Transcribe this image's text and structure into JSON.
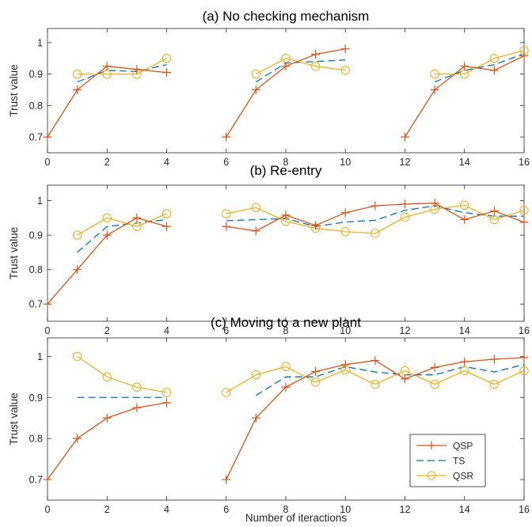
{
  "colors": {
    "QSP": "#d95319",
    "TS": "#0072bd",
    "QSR": "#edb120"
  },
  "xlabel": "Number of iteractions",
  "legend": {
    "entries": [
      "QSP",
      "TS",
      "QSR"
    ],
    "placement": "bottom-right of panel (c)"
  },
  "chart_data": [
    {
      "type": "line",
      "title": "(a) No checking mechanism",
      "xlabel": "",
      "ylabel": "Trust value",
      "xlim": [
        0,
        16
      ],
      "ylim": [
        0.65,
        1.045
      ],
      "xticks": [
        "0",
        "2",
        "4",
        "6",
        "8",
        "10",
        "12",
        "14",
        "16"
      ],
      "yticks": [
        "0.7",
        "0.8",
        "0.9",
        "1"
      ],
      "series": [
        {
          "name": "QSP",
          "segments": [
            {
              "x": [
                0,
                1,
                2,
                3,
                4
              ],
              "y": [
                0.7,
                0.85,
                0.925,
                0.915,
                0.905
              ]
            },
            {
              "x": [
                6,
                7,
                8,
                9,
                10
              ],
              "y": [
                0.7,
                0.85,
                0.925,
                0.963,
                0.98
              ]
            },
            {
              "x": [
                12,
                13,
                14,
                15,
                16
              ],
              "y": [
                0.7,
                0.85,
                0.925,
                0.912,
                0.958
              ]
            }
          ]
        },
        {
          "name": "TS",
          "segments": [
            {
              "x": [
                1,
                2,
                3,
                4
              ],
              "y": [
                0.875,
                0.912,
                0.908,
                0.93
              ]
            },
            {
              "x": [
                7,
                8,
                9,
                10
              ],
              "y": [
                0.875,
                0.935,
                0.94,
                0.945
              ]
            },
            {
              "x": [
                13,
                14,
                15,
                16
              ],
              "y": [
                0.875,
                0.912,
                0.93,
                0.965
              ]
            }
          ]
        },
        {
          "name": "QSR",
          "segments": [
            {
              "x": [
                1,
                2,
                3,
                4
              ],
              "y": [
                0.9,
                0.9,
                0.9,
                0.95
              ]
            },
            {
              "x": [
                7,
                8,
                9,
                10
              ],
              "y": [
                0.9,
                0.95,
                0.925,
                0.912
              ]
            },
            {
              "x": [
                13,
                14,
                15,
                16
              ],
              "y": [
                0.9,
                0.9,
                0.95,
                0.975
              ]
            }
          ]
        }
      ]
    },
    {
      "type": "line",
      "title": "(b) Re-entry",
      "xlabel": "",
      "ylabel": "Trust value",
      "xlim": [
        0,
        16
      ],
      "ylim": [
        0.65,
        1.045
      ],
      "xticks": [
        "0",
        "2",
        "4",
        "6",
        "8",
        "10",
        "12",
        "14",
        "16"
      ],
      "yticks": [
        "0.7",
        "0.8",
        "0.9",
        "1"
      ],
      "series": [
        {
          "name": "QSP",
          "segments": [
            {
              "x": [
                0,
                1,
                2,
                3,
                4
              ],
              "y": [
                0.7,
                0.8,
                0.9,
                0.95,
                0.925
              ]
            },
            {
              "x": [
                6,
                7,
                8,
                9,
                10,
                11,
                12,
                13,
                14,
                15,
                16
              ],
              "y": [
                0.925,
                0.912,
                0.958,
                0.928,
                0.965,
                0.985,
                0.99,
                0.993,
                0.945,
                0.97,
                0.937
              ]
            }
          ]
        },
        {
          "name": "TS",
          "segments": [
            {
              "x": [
                1,
                2,
                3,
                4
              ],
              "y": [
                0.85,
                0.925,
                0.935,
                0.945
              ]
            },
            {
              "x": [
                6,
                7,
                8,
                9,
                10,
                11,
                12,
                13,
                14,
                15,
                16
              ],
              "y": [
                0.942,
                0.945,
                0.948,
                0.925,
                0.938,
                0.943,
                0.972,
                0.985,
                0.965,
                0.955,
                0.955
              ]
            }
          ]
        },
        {
          "name": "QSR",
          "segments": [
            {
              "x": [
                1,
                2,
                3,
                4
              ],
              "y": [
                0.9,
                0.95,
                0.925,
                0.962
              ]
            },
            {
              "x": [
                6,
                7,
                8,
                9,
                10,
                11,
                12,
                13,
                14,
                15,
                16
              ],
              "y": [
                0.962,
                0.98,
                0.94,
                0.92,
                0.91,
                0.905,
                0.952,
                0.975,
                0.987,
                0.945,
                0.972
              ]
            }
          ]
        }
      ]
    },
    {
      "type": "line",
      "title": "(c) Moving to a new plant",
      "xlabel": "Number of iteractions",
      "ylabel": "Trust value",
      "xlim": [
        0,
        16
      ],
      "ylim": [
        0.65,
        1.045
      ],
      "xticks": [
        "0",
        "2",
        "4",
        "6",
        "8",
        "10",
        "12",
        "14",
        "16"
      ],
      "yticks": [
        "0.7",
        "0.8",
        "0.9",
        "1"
      ],
      "series": [
        {
          "name": "QSP",
          "segments": [
            {
              "x": [
                0,
                1,
                2,
                3,
                4
              ],
              "y": [
                0.7,
                0.8,
                0.85,
                0.875,
                0.887
              ]
            },
            {
              "x": [
                6,
                7,
                8,
                9,
                10,
                11,
                12,
                13,
                14,
                15,
                16
              ],
              "y": [
                0.7,
                0.85,
                0.925,
                0.963,
                0.98,
                0.99,
                0.945,
                0.973,
                0.987,
                0.993,
                0.997
              ]
            }
          ]
        },
        {
          "name": "TS",
          "segments": [
            {
              "x": [
                1,
                2,
                3,
                4
              ],
              "y": [
                0.9,
                0.9,
                0.9,
                0.9
              ]
            },
            {
              "x": [
                7,
                8,
                9,
                10,
                11,
                12,
                13,
                14,
                15,
                16
              ],
              "y": [
                0.905,
                0.95,
                0.95,
                0.975,
                0.962,
                0.955,
                0.955,
                0.975,
                0.962,
                0.98
              ]
            }
          ]
        },
        {
          "name": "QSR",
          "segments": [
            {
              "x": [
                1,
                2,
                3,
                4
              ],
              "y": [
                1.0,
                0.95,
                0.925,
                0.912
              ]
            },
            {
              "x": [
                6,
                7,
                8,
                9,
                10,
                11,
                12,
                13,
                14,
                15,
                16
              ],
              "y": [
                0.912,
                0.955,
                0.975,
                0.937,
                0.967,
                0.932,
                0.965,
                0.932,
                0.965,
                0.932,
                0.965
              ]
            }
          ]
        }
      ]
    }
  ]
}
